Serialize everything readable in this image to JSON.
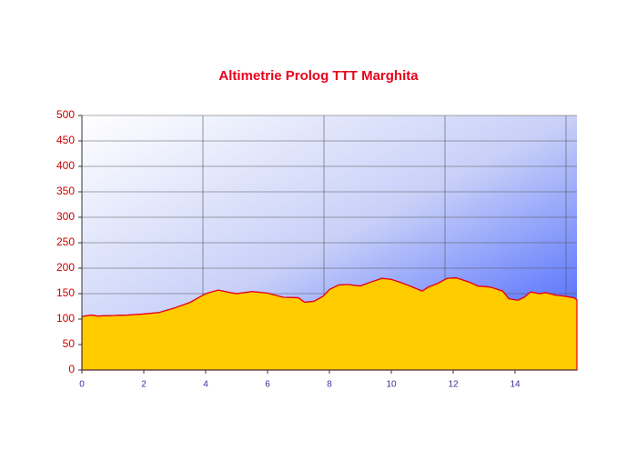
{
  "chart_data": {
    "type": "area",
    "title": "Altimetrie Prolog TTT Marghita",
    "x": [
      0,
      0.3,
      0.5,
      1,
      1.5,
      2,
      2.5,
      3,
      3.5,
      4,
      4.4,
      4.8,
      5,
      5.5,
      6,
      6.5,
      7,
      7.2,
      7.5,
      7.8,
      8,
      8.3,
      8.6,
      9,
      9.3,
      9.7,
      10,
      10.3,
      10.6,
      11,
      11.2,
      11.5,
      11.8,
      12.1,
      12.5,
      12.8,
      13.2,
      13.6,
      13.8,
      14.1,
      14.3,
      14.5,
      14.8,
      15,
      15.3,
      15.6,
      15.9,
      16
    ],
    "values": [
      105,
      108,
      106,
      107,
      108,
      110,
      113,
      122,
      133,
      150,
      157,
      152,
      150,
      154,
      151,
      143,
      142,
      133,
      135,
      145,
      158,
      167,
      168,
      165,
      172,
      180,
      178,
      172,
      165,
      155,
      163,
      170,
      180,
      181,
      173,
      165,
      163,
      155,
      140,
      137,
      143,
      153,
      150,
      152,
      147,
      145,
      142,
      138
    ],
    "color": "#ffcc00",
    "line_color": "#e8001c",
    "xlim": [
      0,
      16
    ],
    "xticks": [
      0,
      2,
      4,
      6,
      8,
      10,
      12,
      14
    ],
    "ylim": [
      0,
      500
    ],
    "yticks": [
      0,
      50,
      100,
      150,
      200,
      250,
      300,
      350,
      400,
      450,
      500
    ],
    "grid": true
  }
}
